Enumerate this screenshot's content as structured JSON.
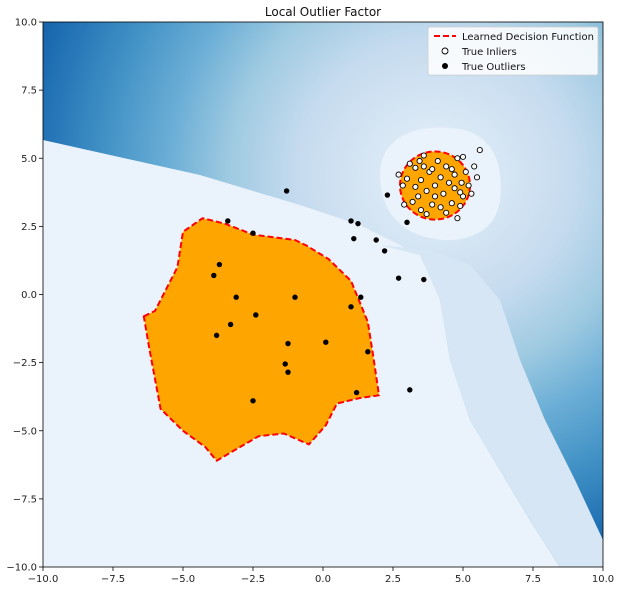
{
  "chart_data": {
    "type": "scatter",
    "title": "Local Outlier Factor",
    "xlabel": "",
    "ylabel": "",
    "xlim": [
      -10,
      10
    ],
    "ylim": [
      -10,
      10
    ],
    "x_ticks": [
      -10,
      -7.5,
      -5,
      -2.5,
      0,
      2.5,
      5,
      7.5,
      10
    ],
    "x_tick_labels": [
      "−10.0",
      "−7.5",
      "−5.0",
      "−2.5",
      "0.0",
      "2.5",
      "5.0",
      "7.5",
      "10.0"
    ],
    "y_ticks": [
      10,
      7.5,
      5,
      2.5,
      0,
      -2.5,
      -5,
      -7.5,
      -10
    ],
    "y_tick_labels": [
      "10.0",
      "7.5",
      "5.0",
      "2.5",
      "0.0",
      "−2.5",
      "−5.0",
      "−7.5",
      "−10.0"
    ],
    "legend": {
      "placement": "top-right",
      "entries": [
        {
          "label": "Learned Decision Function",
          "style": "dashed-red-line"
        },
        {
          "label": "True Inliers",
          "style": "white-circle"
        },
        {
          "label": "True Outliers",
          "style": "black-circle"
        }
      ]
    },
    "colors": {
      "decision": "#ff0000",
      "fill": "#ffa500",
      "background_levels": [
        "#eaf2fb",
        "#d6e6f4",
        "#c6dbef",
        "#9ecae1",
        "#6baed6",
        "#4292c6",
        "#2171b5",
        "#08519c"
      ]
    },
    "inlier_cluster": {
      "center": [
        4,
        4
      ],
      "approx_radius": 1.1
    },
    "decision_regions": [
      {
        "name": "large-region",
        "polygon": [
          [
            -6.4,
            -0.8
          ],
          [
            -6.0,
            -0.6
          ],
          [
            -5.2,
            1.0
          ],
          [
            -5.0,
            2.3
          ],
          [
            -4.3,
            2.8
          ],
          [
            -3.5,
            2.6
          ],
          [
            -2.5,
            2.2
          ],
          [
            -1.0,
            2.0
          ],
          [
            -0.6,
            1.8
          ],
          [
            0.2,
            1.3
          ],
          [
            1.0,
            0.5
          ],
          [
            1.6,
            -1.0
          ],
          [
            1.8,
            -2.3
          ],
          [
            2.0,
            -3.7
          ],
          [
            1.3,
            -3.8
          ],
          [
            0.5,
            -4.0
          ],
          [
            0.1,
            -4.8
          ],
          [
            -0.5,
            -5.5
          ],
          [
            -1.4,
            -5.1
          ],
          [
            -2.3,
            -5.2
          ],
          [
            -3.8,
            -6.1
          ],
          [
            -4.2,
            -5.6
          ],
          [
            -5.0,
            -5.0
          ],
          [
            -5.8,
            -4.2
          ],
          [
            -6.2,
            -2.0
          ]
        ]
      },
      {
        "name": "inlier-region",
        "center": [
          4.0,
          4.0
        ],
        "radius": 1.25
      }
    ],
    "outliers": [
      [
        -1.3,
        3.8
      ],
      [
        -3.4,
        2.7
      ],
      [
        -2.5,
        2.25
      ],
      [
        -3.7,
        1.1
      ],
      [
        -3.9,
        0.7
      ],
      [
        -3.1,
        -0.1
      ],
      [
        -1.0,
        -0.1
      ],
      [
        -2.4,
        -0.75
      ],
      [
        -3.3,
        -1.1
      ],
      [
        -3.8,
        -1.5
      ],
      [
        -1.25,
        -1.8
      ],
      [
        0.1,
        -1.75
      ],
      [
        1.6,
        -2.1
      ],
      [
        -1.35,
        -2.55
      ],
      [
        -1.25,
        -2.85
      ],
      [
        -2.5,
        -3.9
      ],
      [
        1.2,
        -3.6
      ],
      [
        3.1,
        -3.5
      ],
      [
        1.0,
        -0.45
      ],
      [
        1.35,
        -0.1
      ],
      [
        2.7,
        0.6
      ],
      [
        3.6,
        0.55
      ],
      [
        2.2,
        1.6
      ],
      [
        1.1,
        2.05
      ],
      [
        1.9,
        2.0
      ],
      [
        1.0,
        2.7
      ],
      [
        1.25,
        2.6
      ],
      [
        3.0,
        2.65
      ],
      [
        2.3,
        3.65
      ]
    ],
    "inliers": [
      [
        5.6,
        5.3
      ],
      [
        5.0,
        5.05
      ],
      [
        3.6,
        5.1
      ],
      [
        3.1,
        4.8
      ],
      [
        2.7,
        4.4
      ],
      [
        2.85,
        4.0
      ],
      [
        3.3,
        4.65
      ],
      [
        3.5,
        4.2
      ],
      [
        3.8,
        4.5
      ],
      [
        4.1,
        4.9
      ],
      [
        4.4,
        4.7
      ],
      [
        4.7,
        4.4
      ],
      [
        4.95,
        4.1
      ],
      [
        5.2,
        4.0
      ],
      [
        5.4,
        4.7
      ],
      [
        5.5,
        4.3
      ],
      [
        5.3,
        3.7
      ],
      [
        5.0,
        3.6
      ],
      [
        4.7,
        3.9
      ],
      [
        4.3,
        3.7
      ],
      [
        4.0,
        4.0
      ],
      [
        3.7,
        3.8
      ],
      [
        3.4,
        3.6
      ],
      [
        3.2,
        3.4
      ],
      [
        2.9,
        3.3
      ],
      [
        3.5,
        3.1
      ],
      [
        3.9,
        3.3
      ],
      [
        4.2,
        3.2
      ],
      [
        4.6,
        3.35
      ],
      [
        4.9,
        3.25
      ],
      [
        4.4,
        3.0
      ],
      [
        3.7,
        2.95
      ],
      [
        4.8,
        2.8
      ],
      [
        3.6,
        4.7
      ],
      [
        4.2,
        4.3
      ],
      [
        3.9,
        4.6
      ],
      [
        4.5,
        4.1
      ],
      [
        3.3,
        3.95
      ],
      [
        4.6,
        4.6
      ],
      [
        5.1,
        4.5
      ],
      [
        3.0,
        4.25
      ],
      [
        4.8,
        5.0
      ],
      [
        3.45,
        4.9
      ],
      [
        4.0,
        3.6
      ],
      [
        4.9,
        3.75
      ]
    ]
  }
}
